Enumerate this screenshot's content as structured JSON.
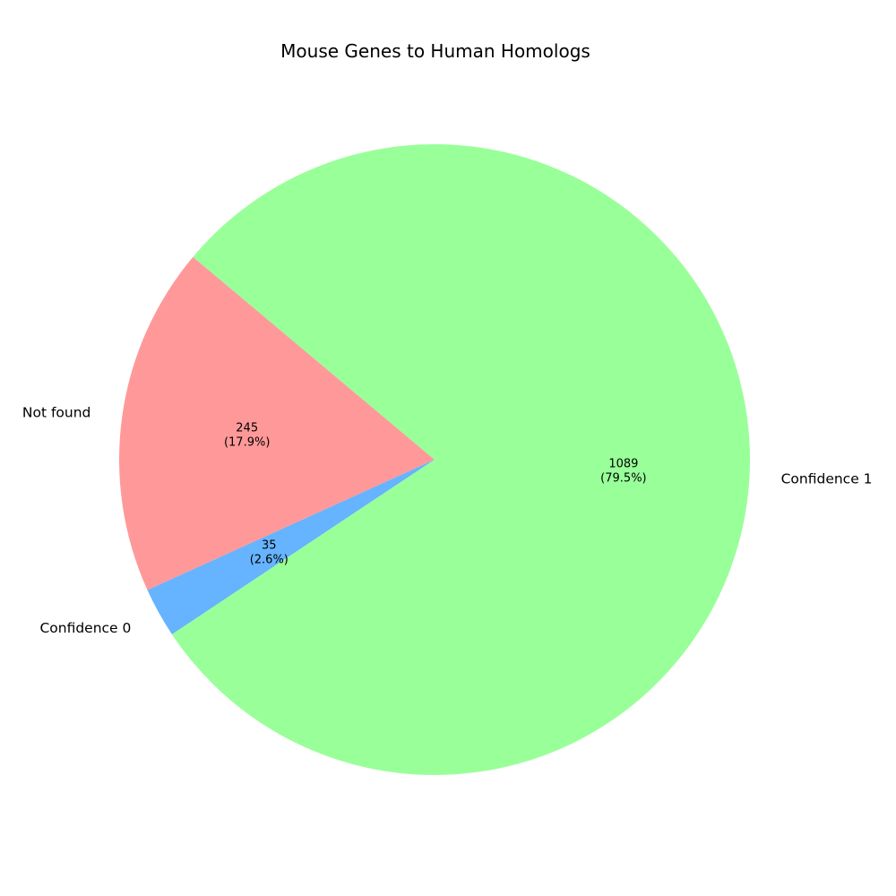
{
  "chart_data": {
    "type": "pie",
    "title": "Mouse Genes to Human Homologs",
    "slices": [
      {
        "label": "Not found",
        "value": 245,
        "percent_label": "17.9%",
        "value_label": "245",
        "color": "#ff9999"
      },
      {
        "label": "Confidence 0",
        "value": 35,
        "percent_label": "2.6%",
        "value_label": "35",
        "color": "#66b3ff"
      },
      {
        "label": "Confidence 1",
        "value": 1089,
        "percent_label": "79.5%",
        "value_label": "1089",
        "color": "#99ff99"
      }
    ],
    "start_angle_deg": 140,
    "direction": "counterclockwise",
    "legend": "none"
  }
}
